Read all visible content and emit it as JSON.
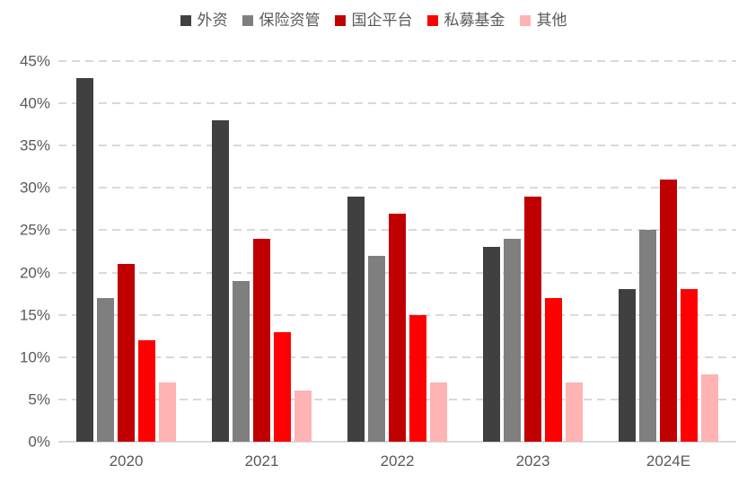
{
  "chart_data": {
    "type": "bar",
    "title": "",
    "xlabel": "",
    "ylabel": "",
    "categories": [
      "2020",
      "2021",
      "2022",
      "2023",
      "2024E"
    ],
    "series": [
      {
        "name": "外资",
        "color": "#404040",
        "values": [
          43,
          38,
          29,
          23,
          18
        ]
      },
      {
        "name": "保险资管",
        "color": "#7f7f7f",
        "values": [
          17,
          19,
          22,
          24,
          25
        ]
      },
      {
        "name": "国企平台",
        "color": "#c00000",
        "values": [
          21,
          24,
          27,
          29,
          31
        ]
      },
      {
        "name": "私募基金",
        "color": "#ff0000",
        "values": [
          12,
          13,
          15,
          17,
          18
        ]
      },
      {
        "name": "其他",
        "color": "#ffb3b3",
        "values": [
          7,
          6,
          7,
          7,
          8
        ]
      }
    ],
    "ylim": [
      0,
      45
    ],
    "ytick_step": 5,
    "yticks": [
      "0%",
      "5%",
      "10%",
      "15%",
      "20%",
      "25%",
      "30%",
      "35%",
      "40%",
      "45%"
    ],
    "grid": "dashed-horizontal",
    "legend_position": "top-center",
    "colors": {
      "axis_label": "#595959",
      "gridline": "#d9d9d9",
      "background": "#ffffff"
    }
  }
}
